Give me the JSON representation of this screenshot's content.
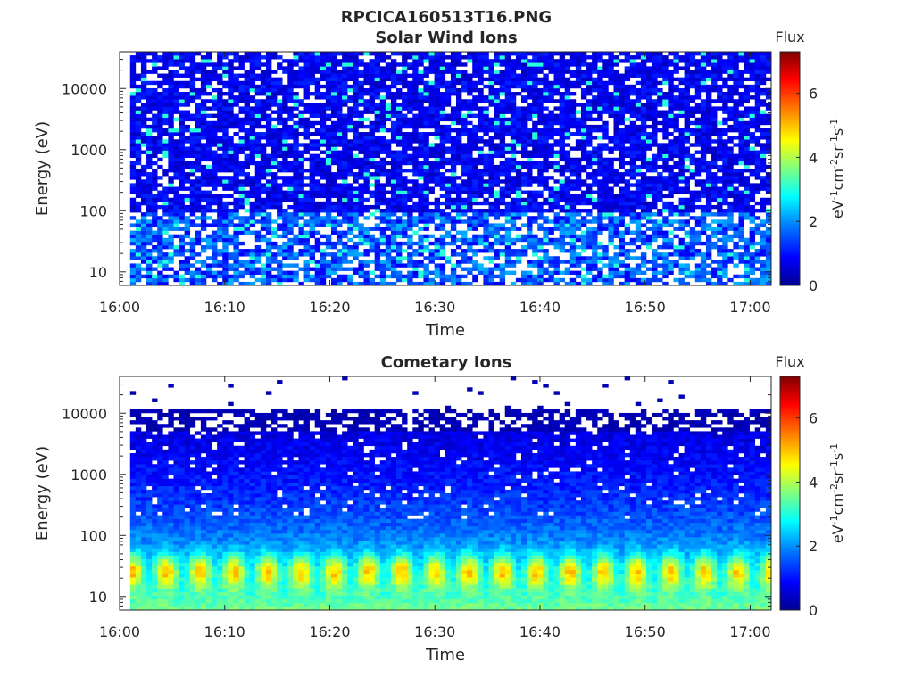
{
  "figure_title": "RPCICA160513T16.PNG",
  "colors": {
    "colormap": [
      "#00008f",
      "#0000ff",
      "#0080ff",
      "#00ffff",
      "#80ff80",
      "#ffff00",
      "#ff8000",
      "#ff0000",
      "#800000"
    ],
    "background": "#ffffff",
    "axis": "#262626"
  },
  "chart_data": [
    {
      "type": "heatmap",
      "title": "Solar Wind Ions",
      "xlabel": "Time",
      "ylabel": "Energy (eV)",
      "x_ticks": [
        "16:00",
        "16:10",
        "16:20",
        "16:30",
        "16:40",
        "16:50",
        "17:00"
      ],
      "x_range": [
        "16:00",
        "17:02"
      ],
      "data_start": "16:01",
      "y_scale": "log",
      "y_ticks": [
        "10",
        "100",
        "1000",
        "10000"
      ],
      "y_range": [
        6,
        40000
      ],
      "colorbar": {
        "title": "Flux",
        "label": "eV-1cm-2sr-1s-1",
        "ticks": [
          "0",
          "2",
          "4",
          "6"
        ],
        "range": [
          0,
          7.3
        ]
      },
      "description_values": {
        "dominant_level_above_100eV": 0.8,
        "dominant_level_below_100eV": 1.6,
        "peak_level": 3.0,
        "white_no_data": true
      }
    },
    {
      "type": "heatmap",
      "title": "Cometary Ions",
      "xlabel": "Time",
      "ylabel": "Energy (eV)",
      "x_ticks": [
        "16:00",
        "16:10",
        "16:20",
        "16:30",
        "16:40",
        "16:50",
        "17:00"
      ],
      "x_range": [
        "16:00",
        "17:02"
      ],
      "data_start": "16:01",
      "y_scale": "log",
      "y_ticks": [
        "10",
        "100",
        "1000",
        "10000"
      ],
      "y_range": [
        6,
        40000
      ],
      "colorbar": {
        "title": "Flux",
        "label": "eV-1cm-2sr-1s-1",
        "ticks": [
          "0",
          "2",
          "4",
          "6"
        ],
        "range": [
          0,
          7.3
        ]
      },
      "description_values": {
        "band_peak_energy_eV": 25,
        "band_peak_level": 5.0,
        "band_period_min": 3.2,
        "level_near_1000eV": 1.0,
        "level_above_5000eV": 0.3
      }
    }
  ]
}
